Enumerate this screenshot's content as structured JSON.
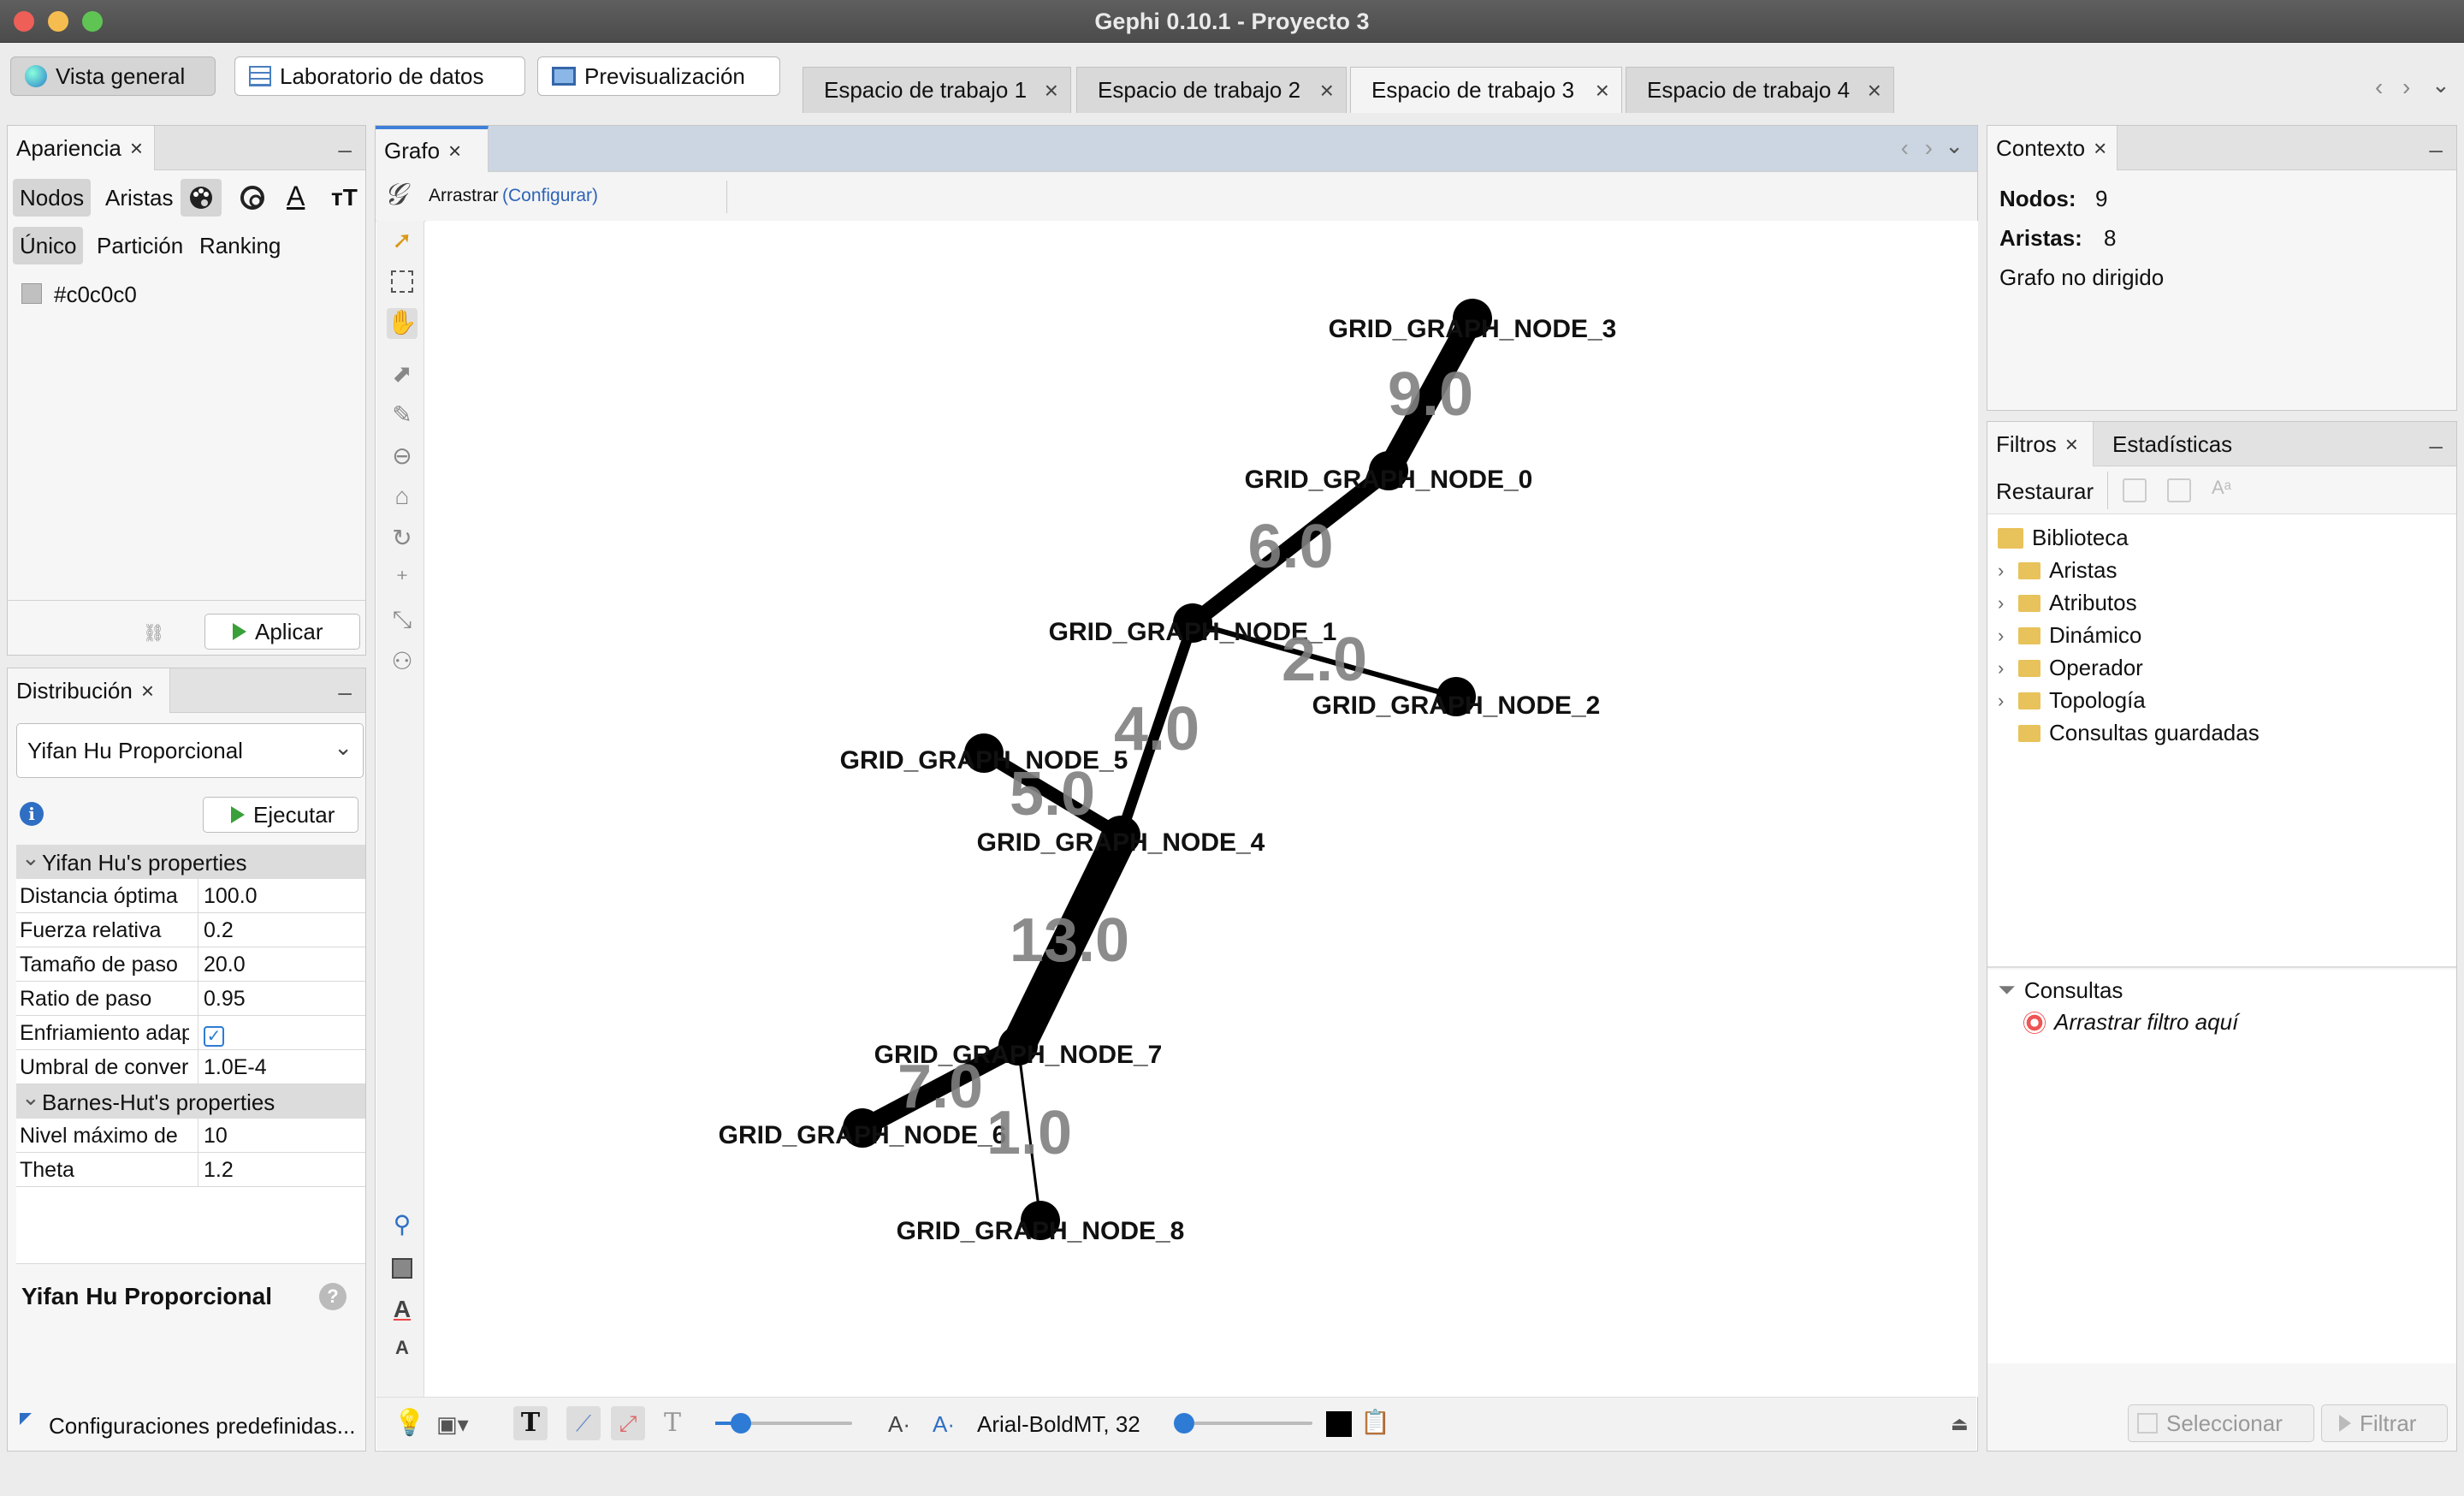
{
  "window": {
    "title": "Gephi 0.10.1 - Proyecto 3"
  },
  "toolbar": {
    "buttons": [
      "Vista general",
      "Laboratorio de datos",
      "Previsualización"
    ],
    "workspaces": [
      "Espacio de trabajo 1",
      "Espacio de trabajo 2",
      "Espacio de trabajo 3",
      "Espacio de trabajo 4"
    ]
  },
  "appearance": {
    "tab": "Apariencia",
    "nodes_tab": "Nodos",
    "edges_tab": "Aristas",
    "modes": [
      "Único",
      "Partición",
      "Ranking"
    ],
    "color_value": "#c0c0c0",
    "apply": "Aplicar"
  },
  "layout": {
    "tab": "Distribución",
    "algorithm": "Yifan Hu Proporcional",
    "run": "Ejecutar",
    "section1": "Yifan Hu's properties",
    "props1": [
      {
        "k": "Distancia óptima",
        "v": "100.0"
      },
      {
        "k": "Fuerza relativa",
        "v": "0.2"
      },
      {
        "k": "Tamaño de paso",
        "v": "20.0"
      },
      {
        "k": "Ratio de paso",
        "v": "0.95"
      },
      {
        "k": "Enfriamiento adaptativo",
        "v": ""
      },
      {
        "k": "Umbral de convergencia",
        "v": "1.0E-4"
      }
    ],
    "section2": "Barnes-Hut's properties",
    "props2": [
      {
        "k": "Nivel máximo de",
        "v": "10"
      },
      {
        "k": "Theta",
        "v": "1.2"
      }
    ],
    "desc_title": "Yifan Hu Proporcional",
    "presets": "Configuraciones predefinidas..."
  },
  "graph": {
    "tab": "Grafo",
    "tool": "Arrastrar",
    "configure": "(Configurar)",
    "font": "Arial-BoldMT, 32",
    "nodes": [
      {
        "id": "GRID_GRAPH_NODE_3",
        "label": "GRID_GRAPH_NODE_3"
      },
      {
        "id": "GRID_GRAPH_NODE_0",
        "label": "GRID_GRAPH_NODE_0"
      },
      {
        "id": "GRID_GRAPH_NODE_1",
        "label": "GRID_GRAPH_NODE_1"
      },
      {
        "id": "GRID_GRAPH_NODE_2",
        "label": "GRID_GRAPH_NODE_2"
      },
      {
        "id": "GRID_GRAPH_NODE_5",
        "label": "GRID_GRAPH_NODE_5"
      },
      {
        "id": "GRID_GRAPH_NODE_4",
        "label": "GRID_GRAPH_NODE_4"
      },
      {
        "id": "GRID_GRAPH_NODE_7",
        "label": "GRID_GRAPH_NODE_7"
      },
      {
        "id": "GRID_GRAPH_NODE_6",
        "label": "GRID_GRAPH_NODE_6"
      },
      {
        "id": "GRID_GRAPH_NODE_8",
        "label": "GRID_GRAPH_NODE_8"
      }
    ],
    "edges": [
      {
        "source": "GRID_GRAPH_NODE_3",
        "target": "GRID_GRAPH_NODE_0",
        "weight": "9.0"
      },
      {
        "source": "GRID_GRAPH_NODE_0",
        "target": "GRID_GRAPH_NODE_1",
        "weight": "6.0"
      },
      {
        "source": "GRID_GRAPH_NODE_1",
        "target": "GRID_GRAPH_NODE_2",
        "weight": "2.0"
      },
      {
        "source": "GRID_GRAPH_NODE_1",
        "target": "GRID_GRAPH_NODE_4",
        "weight": "4.0"
      },
      {
        "source": "GRID_GRAPH_NODE_5",
        "target": "GRID_GRAPH_NODE_4",
        "weight": "5.0"
      },
      {
        "source": "GRID_GRAPH_NODE_4",
        "target": "GRID_GRAPH_NODE_7",
        "weight": "13.0"
      },
      {
        "source": "GRID_GRAPH_NODE_7",
        "target": "GRID_GRAPH_NODE_6",
        "weight": "7.0"
      },
      {
        "source": "GRID_GRAPH_NODE_7",
        "target": "GRID_GRAPH_NODE_8",
        "weight": "1.0"
      }
    ]
  },
  "context": {
    "tab": "Contexto",
    "nodes_label": "Nodos:",
    "nodes_value": "9",
    "edges_label": "Aristas:",
    "edges_value": "8",
    "type": "Grafo no dirigido"
  },
  "filters": {
    "tab": "Filtros",
    "stats_tab": "Estadísticas",
    "reset": "Restaurar",
    "library": "Biblioteca",
    "folders": [
      "Aristas",
      "Atributos",
      "Dinámico",
      "Operador",
      "Topología"
    ],
    "saved": "Consultas guardadas",
    "queries": "Consultas",
    "drop": "Arrastrar filtro aquí",
    "select": "Seleccionar",
    "filter": "Filtrar"
  }
}
